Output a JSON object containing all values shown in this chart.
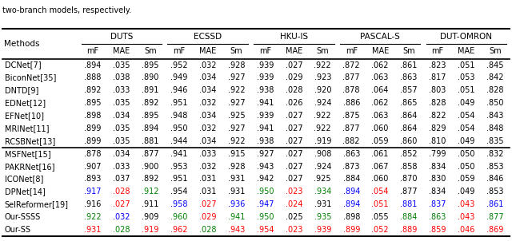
{
  "title_text": "two-branch models, respectively.",
  "datasets": [
    "DUTS",
    "ECSSD",
    "HKU-IS",
    "PASCAL-S",
    "DUT-OMRON"
  ],
  "metrics": [
    "mF",
    "MAE",
    "Sm"
  ],
  "methods": [
    "DCNet[7]",
    "BiconNet[35]",
    "DNTD[9]",
    "EDNet[12]",
    "EFNet[10]",
    "MRINet[11]",
    "RCSBNet[13]",
    "MSFNet[15]",
    "PAKRNet[16]",
    "ICONet[8]",
    "DPNet[14]",
    "SelReformer[19]",
    "Our-SSSS",
    "Our-SS"
  ],
  "data": {
    "DCNet[7]": [
      [
        ".894",
        ".035",
        ".895"
      ],
      [
        ".952",
        ".032",
        ".928"
      ],
      [
        ".939",
        ".027",
        ".922"
      ],
      [
        ".872",
        ".062",
        ".861"
      ],
      [
        ".823",
        ".051",
        ".845"
      ]
    ],
    "BiconNet[35]": [
      [
        ".888",
        ".038",
        ".890"
      ],
      [
        ".949",
        ".034",
        ".927"
      ],
      [
        ".939",
        ".029",
        ".923"
      ],
      [
        ".877",
        ".063",
        ".863"
      ],
      [
        ".817",
        ".053",
        ".842"
      ]
    ],
    "DNTD[9]": [
      [
        ".892",
        ".033",
        ".891"
      ],
      [
        ".946",
        ".034",
        ".922"
      ],
      [
        ".938",
        ".028",
        ".920"
      ],
      [
        ".878",
        ".064",
        ".857"
      ],
      [
        ".803",
        ".051",
        ".828"
      ]
    ],
    "EDNet[12]": [
      [
        ".895",
        ".035",
        ".892"
      ],
      [
        ".951",
        ".032",
        ".927"
      ],
      [
        ".941",
        ".026",
        ".924"
      ],
      [
        ".886",
        ".062",
        ".865"
      ],
      [
        ".828",
        ".049",
        ".850"
      ]
    ],
    "EFNet[10]": [
      [
        ".898",
        ".034",
        ".895"
      ],
      [
        ".948",
        ".034",
        ".925"
      ],
      [
        ".939",
        ".027",
        ".922"
      ],
      [
        ".875",
        ".063",
        ".864"
      ],
      [
        ".822",
        ".054",
        ".843"
      ]
    ],
    "MRINet[11]": [
      [
        ".899",
        ".035",
        ".894"
      ],
      [
        ".950",
        ".032",
        ".927"
      ],
      [
        ".941",
        ".027",
        ".922"
      ],
      [
        ".877",
        ".060",
        ".864"
      ],
      [
        ".829",
        ".054",
        ".848"
      ]
    ],
    "RCSBNet[13]": [
      [
        ".899",
        ".035",
        ".881"
      ],
      [
        ".944",
        ".034",
        ".922"
      ],
      [
        ".938",
        ".027",
        ".919"
      ],
      [
        ".882",
        ".059",
        ".860"
      ],
      [
        ".810",
        ".049",
        ".835"
      ]
    ],
    "MSFNet[15]": [
      [
        ".878",
        ".034",
        ".877"
      ],
      [
        ".941",
        ".033",
        ".915"
      ],
      [
        ".927",
        ".027",
        ".908"
      ],
      [
        ".863",
        ".061",
        ".852"
      ],
      [
        ".799",
        ".050",
        ".832"
      ]
    ],
    "PAKRNet[16]": [
      [
        ".907",
        ".033",
        ".900"
      ],
      [
        ".953",
        ".032",
        ".928"
      ],
      [
        ".943",
        ".027",
        ".924"
      ],
      [
        ".873",
        ".067",
        ".858"
      ],
      [
        ".834",
        ".050",
        ".853"
      ]
    ],
    "ICONet[8]": [
      [
        ".893",
        ".037",
        ".892"
      ],
      [
        ".951",
        ".031",
        ".931"
      ],
      [
        ".942",
        ".027",
        ".925"
      ],
      [
        ".884",
        ".060",
        ".870"
      ],
      [
        ".830",
        ".059",
        ".846"
      ]
    ],
    "DPNet[14]": [
      [
        ".917",
        ".028",
        ".912"
      ],
      [
        ".954",
        ".031",
        ".931"
      ],
      [
        ".950",
        ".023",
        ".934"
      ],
      [
        ".894",
        ".054",
        ".877"
      ],
      [
        ".834",
        ".049",
        ".853"
      ]
    ],
    "SelReformer[19]": [
      [
        ".916",
        ".027",
        ".911"
      ],
      [
        ".958",
        ".027",
        ".936"
      ],
      [
        ".947",
        ".024",
        ".931"
      ],
      [
        ".894",
        ".051",
        ".881"
      ],
      [
        ".837",
        ".043",
        ".861"
      ]
    ],
    "Our-SSSS": [
      [
        ".922",
        ".032",
        ".909"
      ],
      [
        ".960",
        ".029",
        ".941"
      ],
      [
        ".950",
        ".025",
        ".935"
      ],
      [
        ".898",
        ".055",
        ".884"
      ],
      [
        ".863",
        ".043",
        ".877"
      ]
    ],
    "Our-SS": [
      [
        ".931",
        ".028",
        ".919"
      ],
      [
        ".962",
        ".028",
        ".943"
      ],
      [
        ".954",
        ".023",
        ".939"
      ],
      [
        ".899",
        ".052",
        ".889"
      ],
      [
        ".859",
        ".046",
        ".869"
      ]
    ]
  },
  "colors": {
    "DCNet[7]": [
      [
        "k",
        "k",
        "k"
      ],
      [
        "k",
        "k",
        "k"
      ],
      [
        "k",
        "k",
        "k"
      ],
      [
        "k",
        "k",
        "k"
      ],
      [
        "k",
        "k",
        "k"
      ]
    ],
    "BiconNet[35]": [
      [
        "k",
        "k",
        "k"
      ],
      [
        "k",
        "k",
        "k"
      ],
      [
        "k",
        "k",
        "k"
      ],
      [
        "k",
        "k",
        "k"
      ],
      [
        "k",
        "k",
        "k"
      ]
    ],
    "DNTD[9]": [
      [
        "k",
        "k",
        "k"
      ],
      [
        "k",
        "k",
        "k"
      ],
      [
        "k",
        "k",
        "k"
      ],
      [
        "k",
        "k",
        "k"
      ],
      [
        "k",
        "k",
        "k"
      ]
    ],
    "EDNet[12]": [
      [
        "k",
        "k",
        "k"
      ],
      [
        "k",
        "k",
        "k"
      ],
      [
        "k",
        "k",
        "k"
      ],
      [
        "k",
        "k",
        "k"
      ],
      [
        "k",
        "k",
        "k"
      ]
    ],
    "EFNet[10]": [
      [
        "k",
        "k",
        "k"
      ],
      [
        "k",
        "k",
        "k"
      ],
      [
        "k",
        "k",
        "k"
      ],
      [
        "k",
        "k",
        "k"
      ],
      [
        "k",
        "k",
        "k"
      ]
    ],
    "MRINet[11]": [
      [
        "k",
        "k",
        "k"
      ],
      [
        "k",
        "k",
        "k"
      ],
      [
        "k",
        "k",
        "k"
      ],
      [
        "k",
        "k",
        "k"
      ],
      [
        "k",
        "k",
        "k"
      ]
    ],
    "RCSBNet[13]": [
      [
        "k",
        "k",
        "k"
      ],
      [
        "k",
        "k",
        "k"
      ],
      [
        "k",
        "k",
        "k"
      ],
      [
        "k",
        "k",
        "k"
      ],
      [
        "k",
        "k",
        "k"
      ]
    ],
    "MSFNet[15]": [
      [
        "k",
        "k",
        "k"
      ],
      [
        "k",
        "k",
        "k"
      ],
      [
        "k",
        "k",
        "k"
      ],
      [
        "k",
        "k",
        "k"
      ],
      [
        "k",
        "k",
        "k"
      ]
    ],
    "PAKRNet[16]": [
      [
        "k",
        "k",
        "k"
      ],
      [
        "k",
        "k",
        "k"
      ],
      [
        "k",
        "k",
        "k"
      ],
      [
        "k",
        "k",
        "k"
      ],
      [
        "k",
        "k",
        "k"
      ]
    ],
    "ICONet[8]": [
      [
        "k",
        "k",
        "k"
      ],
      [
        "k",
        "k",
        "k"
      ],
      [
        "k",
        "k",
        "k"
      ],
      [
        "k",
        "k",
        "k"
      ],
      [
        "k",
        "k",
        "k"
      ]
    ],
    "DPNet[14]": [
      [
        "blue",
        "red",
        "green"
      ],
      [
        "k",
        "k",
        "k"
      ],
      [
        "green",
        "red",
        "green"
      ],
      [
        "blue",
        "red",
        "k"
      ],
      [
        "k",
        "k",
        "k"
      ]
    ],
    "SelReformer[19]": [
      [
        "k",
        "red",
        "k"
      ],
      [
        "blue",
        "red",
        "blue"
      ],
      [
        "blue",
        "red",
        "k"
      ],
      [
        "blue",
        "red",
        "blue"
      ],
      [
        "blue",
        "red",
        "blue"
      ]
    ],
    "Our-SSSS": [
      [
        "green",
        "blue",
        "k"
      ],
      [
        "green",
        "red",
        "green"
      ],
      [
        "green",
        "k",
        "green"
      ],
      [
        "k",
        "k",
        "green"
      ],
      [
        "green",
        "red",
        "green"
      ]
    ],
    "Our-SS": [
      [
        "red",
        "green",
        "red"
      ],
      [
        "red",
        "green",
        "red"
      ],
      [
        "red",
        "red",
        "red"
      ],
      [
        "red",
        "red",
        "red"
      ],
      [
        "red",
        "red",
        "red"
      ]
    ]
  },
  "figsize": [
    6.4,
    3.02
  ],
  "dpi": 100,
  "font_size": 7.0,
  "header_font_size": 7.5
}
